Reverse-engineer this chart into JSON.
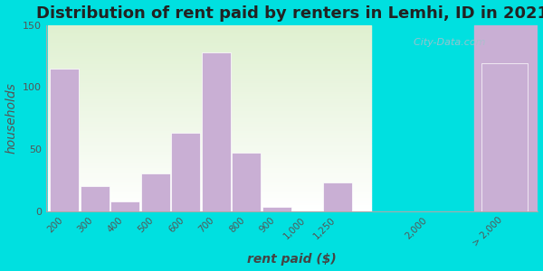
{
  "title": "Distribution of rent paid by renters in Lemhi, ID in 2021",
  "xlabel": "rent paid ($)",
  "ylabel": "households",
  "bar_labels": [
    "200",
    "300",
    "400",
    "500",
    "600",
    "700",
    "800",
    "900",
    "1,000",
    "1,250",
    "2,000",
    "> 2,000"
  ],
  "bar_values": [
    115,
    20,
    8,
    30,
    63,
    128,
    47,
    3,
    0,
    23,
    0,
    119
  ],
  "bar_color": "#c9afd4",
  "bar_edge_color": "#b89cc0",
  "bg_color_left_top": "#dff0d0",
  "bg_color_left_bottom": "#f5fce8",
  "bg_color_right": "#c9afd4",
  "outer_bg_color": "#00e0e0",
  "ylim": [
    0,
    150
  ],
  "yticks": [
    0,
    50,
    100,
    150
  ],
  "title_fontsize": 13,
  "axis_label_fontsize": 10,
  "watermark": "City-Data.com"
}
